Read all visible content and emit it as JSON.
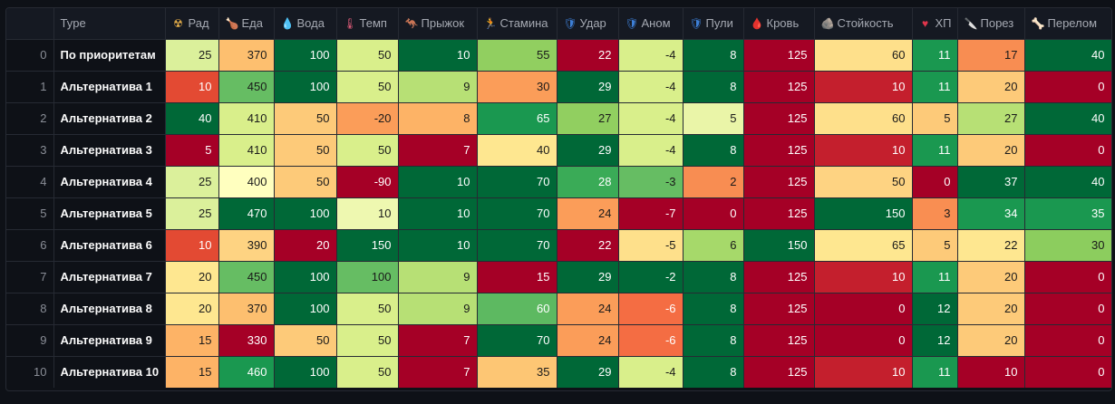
{
  "table": {
    "columns": [
      {
        "label": "Type",
        "icon": "",
        "icon_name": ""
      },
      {
        "label": "Рад",
        "icon": "☢",
        "icon_name": "radiation-icon",
        "icon_color": "#e8b04a"
      },
      {
        "label": "Еда",
        "icon": "🍗",
        "icon_name": "food-icon",
        "icon_color": "#c9854e"
      },
      {
        "label": "Вода",
        "icon": "💧",
        "icon_name": "water-drop-icon",
        "icon_color": "#4aa3e8"
      },
      {
        "label": "Темп",
        "icon": "🌡",
        "icon_name": "thermometer-icon",
        "icon_color": "#e05c7a"
      },
      {
        "label": "Прыжок",
        "icon": "🦘",
        "icon_name": "kangaroo-icon",
        "icon_color": "#c9954e"
      },
      {
        "label": "Стамина",
        "icon": "🏃",
        "icon_name": "running-icon",
        "icon_color": "#b8bcc4"
      },
      {
        "label": "Удар",
        "icon": "🛡",
        "icon_name": "shield-icon",
        "icon_color": "#3d7fd6"
      },
      {
        "label": "Аном",
        "icon": "🛡",
        "icon_name": "shield-icon",
        "icon_color": "#3d7fd6"
      },
      {
        "label": "Пули",
        "icon": "🛡",
        "icon_name": "shield-icon",
        "icon_color": "#3d7fd6"
      },
      {
        "label": "Кровь",
        "icon": "🩸",
        "icon_name": "blood-drop-icon",
        "icon_color": "#c0283c"
      },
      {
        "label": "Стойкость",
        "icon": "🪨",
        "icon_name": "rock-icon",
        "icon_color": "#9a9ea6"
      },
      {
        "label": "ХП",
        "icon": "♥",
        "icon_name": "heart-icon",
        "icon_color": "#e0354b"
      },
      {
        "label": "Порез",
        "icon": "🔪",
        "icon_name": "knife-icon",
        "icon_color": "#9aa0aa"
      },
      {
        "label": "Перелом",
        "icon": "🦴",
        "icon_name": "bone-icon",
        "icon_color": "#e6e0d4"
      }
    ],
    "rows": [
      {
        "index": "0",
        "name": "По приоритетам",
        "values": [
          "25",
          "370",
          "100",
          "50",
          "10",
          "55",
          "22",
          "-4",
          "8",
          "125",
          "60",
          "11",
          "17",
          "40"
        ],
        "colors": [
          "#dbf09b",
          "#fdbf6f",
          "#006837",
          "#d9ef8b",
          "#006837",
          "#91cf60",
          "#a50026",
          "#d9ef8b",
          "#006837",
          "#a50026",
          "#fee08b",
          "#1a9850",
          "#f88d52",
          "#006837"
        ]
      },
      {
        "index": "1",
        "name": "Альтернатива 1",
        "values": [
          "10",
          "450",
          "100",
          "50",
          "9",
          "30",
          "29",
          "-4",
          "8",
          "125",
          "10",
          "11",
          "20",
          "0"
        ],
        "colors": [
          "#e34a33",
          "#66bd63",
          "#006837",
          "#d9ef8b",
          "#b7e075",
          "#fb9d59",
          "#006837",
          "#d9ef8b",
          "#006837",
          "#a50026",
          "#c41f2d",
          "#1a9850",
          "#fdca79",
          "#a50026"
        ]
      },
      {
        "index": "2",
        "name": "Альтернатива 2",
        "values": [
          "40",
          "410",
          "50",
          "-20",
          "8",
          "65",
          "27",
          "-4",
          "5",
          "125",
          "60",
          "5",
          "27",
          "40"
        ],
        "colors": [
          "#006837",
          "#d9ef8b",
          "#fdca79",
          "#fb9d59",
          "#fdb366",
          "#1a9850",
          "#91cf60",
          "#d9ef8b",
          "#eaf5a8",
          "#a50026",
          "#fee08b",
          "#fdca79",
          "#b7e075",
          "#006837"
        ]
      },
      {
        "index": "3",
        "name": "Альтернатива 3",
        "values": [
          "5",
          "410",
          "50",
          "50",
          "7",
          "40",
          "29",
          "-4",
          "8",
          "125",
          "10",
          "11",
          "20",
          "0"
        ],
        "colors": [
          "#a50026",
          "#d9ef8b",
          "#fdca79",
          "#d9ef8b",
          "#a50026",
          "#fee790",
          "#006837",
          "#d9ef8b",
          "#006837",
          "#a50026",
          "#c41f2d",
          "#1a9850",
          "#fdca79",
          "#a50026"
        ]
      },
      {
        "index": "4",
        "name": "Альтернатива 4",
        "values": [
          "25",
          "400",
          "50",
          "-90",
          "10",
          "70",
          "28",
          "-3",
          "2",
          "125",
          "50",
          "0",
          "37",
          "40"
        ],
        "colors": [
          "#dbf09b",
          "#ffffbf",
          "#fdca79",
          "#a50026",
          "#006837",
          "#006837",
          "#3aab57",
          "#66bd63",
          "#f88d52",
          "#a50026",
          "#fed382",
          "#a50026",
          "#006837",
          "#006837"
        ]
      },
      {
        "index": "5",
        "name": "Альтернатива 5",
        "values": [
          "25",
          "470",
          "100",
          "10",
          "10",
          "70",
          "24",
          "-7",
          "0",
          "125",
          "150",
          "3",
          "34",
          "35"
        ],
        "colors": [
          "#dbf09b",
          "#006837",
          "#006837",
          "#eef8b0",
          "#006837",
          "#006837",
          "#fb9d59",
          "#a50026",
          "#a50026",
          "#a50026",
          "#006837",
          "#f98e52",
          "#1a9850",
          "#1a9850"
        ]
      },
      {
        "index": "6",
        "name": "Альтернатива 6",
        "values": [
          "10",
          "390",
          "20",
          "150",
          "10",
          "70",
          "22",
          "-5",
          "6",
          "150",
          "65",
          "5",
          "22",
          "30"
        ],
        "colors": [
          "#e34a33",
          "#fed382",
          "#a50026",
          "#006837",
          "#006837",
          "#006837",
          "#a50026",
          "#fee08b",
          "#a6d96a",
          "#006837",
          "#fee790",
          "#fdca79",
          "#fee790",
          "#8ccd5e"
        ]
      },
      {
        "index": "7",
        "name": "Альтернатива 7",
        "values": [
          "20",
          "450",
          "100",
          "100",
          "9",
          "15",
          "29",
          "-2",
          "8",
          "125",
          "10",
          "11",
          "20",
          "0"
        ],
        "colors": [
          "#fee790",
          "#66bd63",
          "#006837",
          "#66bd63",
          "#b7e075",
          "#a50026",
          "#006837",
          "#006837",
          "#006837",
          "#a50026",
          "#c41f2d",
          "#1a9850",
          "#fdca79",
          "#a50026"
        ]
      },
      {
        "index": "8",
        "name": "Альтернатива 8",
        "values": [
          "20",
          "370",
          "100",
          "50",
          "9",
          "60",
          "24",
          "-6",
          "8",
          "125",
          "0",
          "12",
          "20",
          "0"
        ],
        "colors": [
          "#fee790",
          "#fdbf6f",
          "#006837",
          "#d9ef8b",
          "#b7e075",
          "#5db961",
          "#fb9d59",
          "#f46d43",
          "#006837",
          "#a50026",
          "#a50026",
          "#006837",
          "#fdca79",
          "#a50026"
        ]
      },
      {
        "index": "9",
        "name": "Альтернатива 9",
        "values": [
          "15",
          "330",
          "50",
          "50",
          "7",
          "70",
          "24",
          "-6",
          "8",
          "125",
          "0",
          "12",
          "20",
          "0"
        ],
        "colors": [
          "#fdb366",
          "#a50026",
          "#fdca79",
          "#d9ef8b",
          "#a50026",
          "#006837",
          "#fb9d59",
          "#f46d43",
          "#006837",
          "#a50026",
          "#a50026",
          "#006837",
          "#fdca79",
          "#a50026"
        ]
      },
      {
        "index": "10",
        "name": "Альтернатива 10",
        "values": [
          "15",
          "460",
          "100",
          "50",
          "7",
          "35",
          "29",
          "-4",
          "8",
          "125",
          "10",
          "11",
          "10",
          "0"
        ],
        "colors": [
          "#fdb366",
          "#1a9850",
          "#006837",
          "#d9ef8b",
          "#a50026",
          "#fdc674",
          "#006837",
          "#d9ef8b",
          "#006837",
          "#a50026",
          "#c41f2d",
          "#1a9850",
          "#a50026",
          "#a50026"
        ]
      }
    ]
  }
}
